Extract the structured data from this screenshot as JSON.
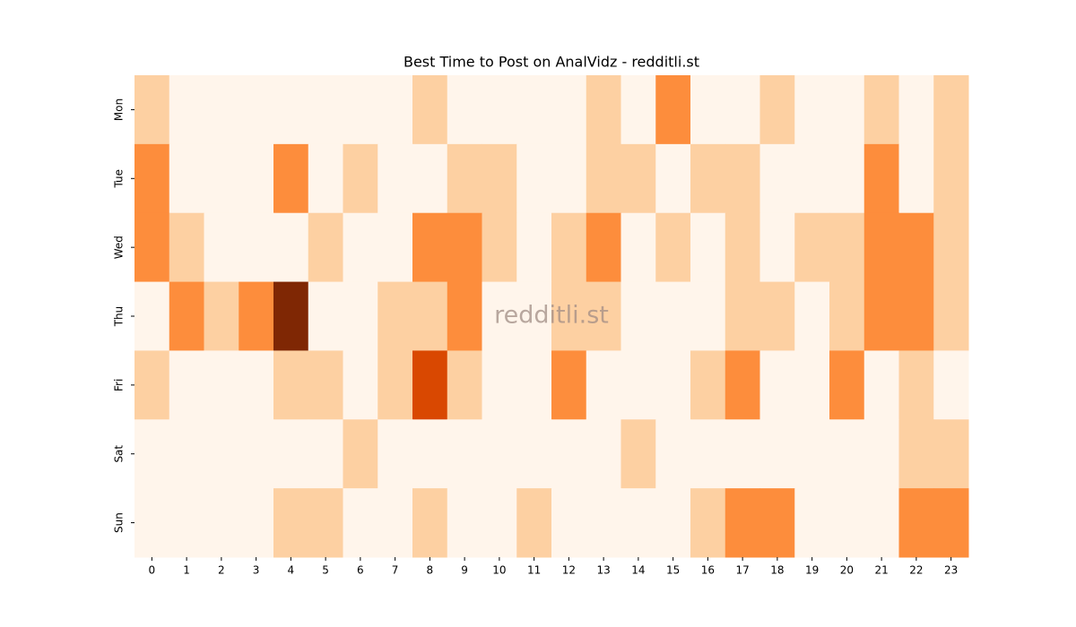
{
  "chart_data": {
    "type": "heatmap",
    "title": "Best Time to Post on AnalVidz - redditli.st",
    "watermark": "redditli.st",
    "categories": [
      "0",
      "1",
      "2",
      "3",
      "4",
      "5",
      "6",
      "7",
      "8",
      "9",
      "10",
      "11",
      "12",
      "13",
      "14",
      "15",
      "16",
      "17",
      "18",
      "19",
      "20",
      "21",
      "22",
      "23"
    ],
    "rows": [
      "Mon",
      "Tue",
      "Wed",
      "Thu",
      "Fri",
      "Sat",
      "Sun"
    ],
    "values": [
      [
        1,
        0,
        0,
        0,
        0,
        0,
        0,
        0,
        1,
        0,
        0,
        0,
        0,
        1,
        0,
        2,
        0,
        0,
        1,
        0,
        0,
        1,
        0,
        1
      ],
      [
        2,
        0,
        0,
        0,
        2,
        0,
        1,
        0,
        0,
        1,
        1,
        0,
        0,
        1,
        1,
        0,
        1,
        1,
        0,
        0,
        0,
        2,
        0,
        1
      ],
      [
        2,
        1,
        0,
        0,
        0,
        1,
        0,
        0,
        2,
        2,
        1,
        0,
        1,
        2,
        0,
        1,
        0,
        1,
        0,
        1,
        1,
        2,
        2,
        1
      ],
      [
        0,
        2,
        1,
        2,
        4,
        0,
        0,
        1,
        1,
        2,
        0,
        0,
        1,
        1,
        0,
        0,
        0,
        1,
        1,
        0,
        1,
        2,
        2,
        1
      ],
      [
        1,
        0,
        0,
        0,
        1,
        1,
        0,
        1,
        3,
        1,
        0,
        0,
        2,
        0,
        0,
        0,
        1,
        2,
        0,
        0,
        2,
        0,
        1,
        0
      ],
      [
        0,
        0,
        0,
        0,
        0,
        0,
        1,
        0,
        0,
        0,
        0,
        0,
        0,
        0,
        1,
        0,
        0,
        0,
        0,
        0,
        0,
        0,
        1,
        1
      ],
      [
        0,
        0,
        0,
        0,
        1,
        1,
        0,
        0,
        1,
        0,
        0,
        1,
        0,
        0,
        0,
        0,
        1,
        2,
        2,
        0,
        0,
        0,
        2,
        2
      ]
    ],
    "zlim": [
      0,
      4
    ],
    "colorscale": [
      "#fff5eb",
      "#fdd0a2",
      "#fd8d3c",
      "#d94801",
      "#7f2704"
    ]
  }
}
